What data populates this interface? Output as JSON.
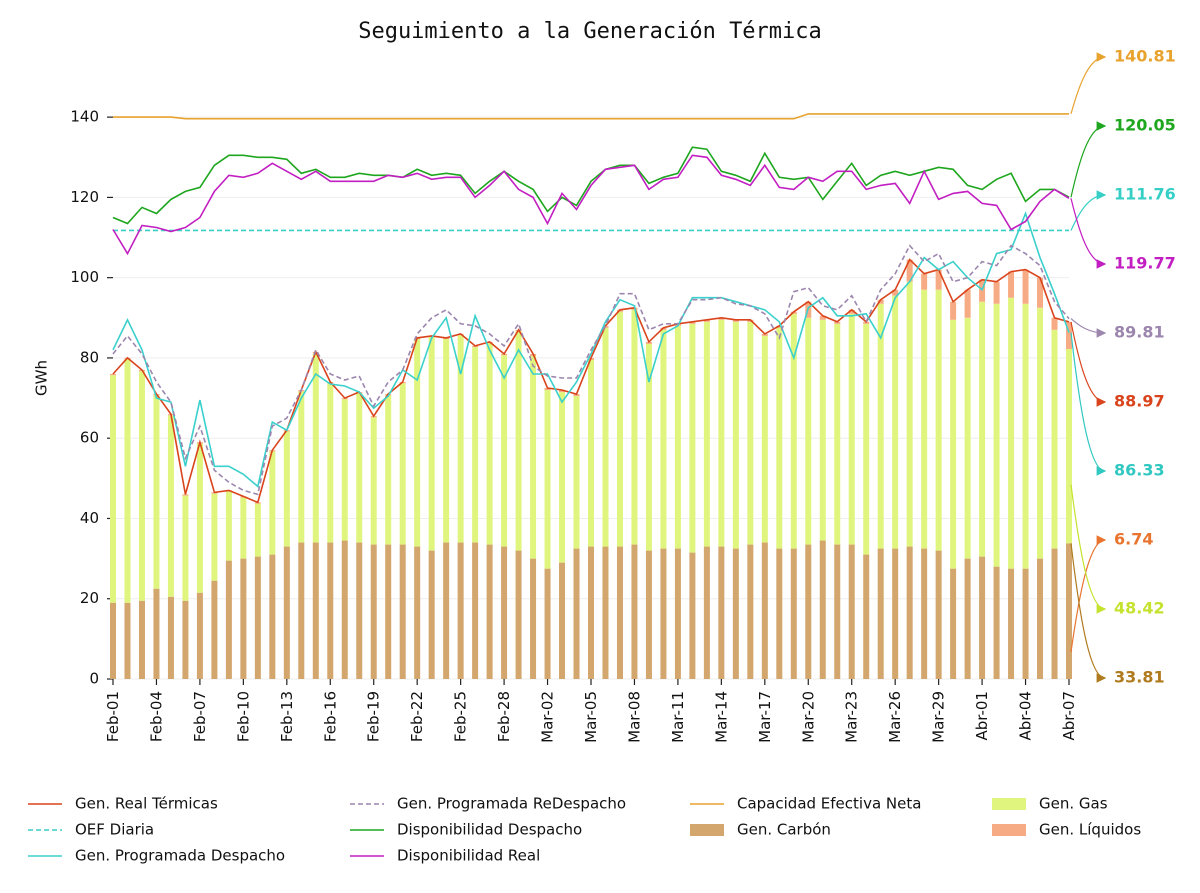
{
  "chart_data": {
    "type": "combo",
    "title": "Seguimiento a la Generación Térmica",
    "y_label": "GWh",
    "categories": [
      "Feb-01",
      null,
      null,
      "Feb-04",
      null,
      null,
      "Feb-07",
      null,
      null,
      "Feb-10",
      null,
      null,
      "Feb-13",
      null,
      null,
      "Feb-16",
      null,
      null,
      "Feb-19",
      null,
      null,
      "Feb-22",
      null,
      null,
      "Feb-25",
      null,
      null,
      "Feb-28",
      null,
      null,
      "Mar-02",
      null,
      null,
      "Mar-05",
      null,
      null,
      "Mar-08",
      null,
      null,
      "Mar-11",
      null,
      null,
      "Mar-14",
      null,
      null,
      "Mar-17",
      null,
      null,
      "Mar-20",
      null,
      null,
      "Mar-23",
      null,
      null,
      "Mar-26",
      null,
      null,
      "Mar-29",
      null,
      null,
      "Abr-01",
      null,
      null,
      "Abr-04",
      null,
      null,
      "Abr-07"
    ],
    "ylim": [
      0,
      150
    ],
    "yticks": [
      0,
      20,
      40,
      60,
      80,
      100,
      120,
      140
    ],
    "grid": true,
    "series": [
      {
        "name": "Gen. Real Térmicas",
        "kind": "line",
        "color": "#d9441c",
        "label_color": "#d9441c",
        "values": [
          76,
          80,
          77,
          71,
          66,
          46,
          59,
          46.5,
          47,
          45.5,
          44,
          57,
          62,
          72,
          81.5,
          74,
          70,
          71.5,
          65.5,
          71,
          74,
          85,
          85.5,
          85,
          86,
          83,
          84,
          81,
          87,
          81,
          72.5,
          72,
          71,
          80,
          88,
          92,
          92.5,
          84,
          87.5,
          88.5,
          89,
          89.5,
          90,
          89.5,
          89.5,
          86,
          88,
          91.5,
          94,
          90.5,
          89,
          92,
          89,
          94.5,
          97,
          104.5,
          101,
          102,
          94,
          97,
          99.5,
          99,
          101.5,
          102,
          100,
          90,
          88.97
        ]
      },
      {
        "name": "OEF Diaria",
        "kind": "hline",
        "dashed": true,
        "color": "#35cfc6",
        "label_color": "#35cfc6",
        "value": 111.76
      },
      {
        "name": "Gen. Programada Despacho",
        "kind": "line",
        "color": "#3ad0cc",
        "label_color": "#30c8c0",
        "values": [
          82,
          89.5,
          82,
          70,
          69,
          53,
          69.5,
          53,
          53,
          51,
          48,
          64,
          62,
          70,
          76,
          73.5,
          73,
          71.5,
          67.5,
          70.5,
          77,
          74.5,
          85,
          90,
          76,
          90.5,
          82,
          75,
          82,
          76,
          76,
          69,
          74,
          81,
          89,
          94.5,
          93,
          74,
          86,
          88,
          95,
          95,
          95,
          94,
          93,
          92,
          89,
          80,
          92.5,
          95,
          90.5,
          90.5,
          91,
          85,
          95,
          99,
          105,
          102,
          104,
          100,
          97,
          106,
          107,
          116,
          105,
          96,
          86.33
        ]
      },
      {
        "name": "Gen. Programada ReDespacho",
        "kind": "line",
        "dashed": true,
        "color": "#9c86ae",
        "label_color": "#9c86ae",
        "values": [
          81,
          85.5,
          81,
          74,
          69,
          55,
          63,
          52,
          49,
          47,
          46,
          63,
          65,
          72,
          82,
          76,
          74.5,
          75.5,
          68,
          74,
          77,
          86,
          90,
          92,
          88.5,
          88,
          86,
          83,
          88.5,
          78,
          75.5,
          75,
          75,
          82,
          88,
          96,
          96,
          87,
          88.5,
          88.5,
          94.5,
          94.5,
          95,
          93.5,
          93,
          91,
          85,
          96.5,
          97.5,
          93,
          92,
          95.5,
          89,
          97,
          101,
          108,
          104,
          106,
          99,
          100,
          104,
          103,
          108,
          106,
          103,
          94,
          89.81
        ]
      },
      {
        "name": "Disponibilidad Despacho",
        "kind": "line",
        "color": "#1ea61e",
        "label_color": "#1ea61e",
        "values": [
          115,
          113.5,
          117.5,
          116,
          119.5,
          121.5,
          122.5,
          128,
          130.5,
          130.5,
          130,
          130,
          129.5,
          126,
          127,
          125,
          125,
          126,
          125.5,
          125.5,
          125,
          127,
          125.5,
          126,
          125.5,
          121,
          124,
          126.5,
          124,
          122,
          116.5,
          120,
          118,
          124,
          127,
          128,
          128,
          123.5,
          125,
          126,
          132.5,
          132,
          126.5,
          125.5,
          124,
          131,
          125,
          124.5,
          125,
          119.5,
          124,
          128.5,
          123,
          125.5,
          126.5,
          125.5,
          126.5,
          127.5,
          127,
          123,
          122,
          124.5,
          126,
          119,
          122,
          122,
          120.05
        ]
      },
      {
        "name": "Disponibilidad Real",
        "kind": "line",
        "color": "#c21fc2",
        "label_color": "#c21fc2",
        "values": [
          112,
          106,
          113,
          112.5,
          111.5,
          112.5,
          115,
          121.5,
          125.5,
          125,
          126,
          128.5,
          126.5,
          124.5,
          126.5,
          124,
          124,
          124,
          124,
          125.5,
          125,
          126,
          124.5,
          125,
          125,
          120,
          123,
          126.5,
          122,
          120,
          113.5,
          121,
          117,
          123,
          127,
          127.5,
          128,
          122,
          124.5,
          125,
          130.5,
          130,
          125.5,
          124.5,
          123,
          128,
          122.5,
          122,
          125,
          124,
          126.5,
          126.5,
          122,
          123,
          123.5,
          118.5,
          126.5,
          119.5,
          121,
          121.5,
          118.5,
          118,
          112,
          114,
          119,
          122,
          119.77
        ]
      },
      {
        "name": "Capacidad Efectiva Neta",
        "kind": "line",
        "color": "#e8a22e",
        "label_color": "#e8a22e",
        "values": [
          140,
          140,
          140,
          140,
          140,
          139.6,
          139.6,
          139.6,
          139.6,
          139.6,
          139.6,
          139.6,
          139.6,
          139.6,
          139.6,
          139.6,
          139.6,
          139.6,
          139.6,
          139.6,
          139.6,
          139.6,
          139.6,
          139.6,
          139.6,
          139.6,
          139.6,
          139.6,
          139.6,
          139.6,
          139.6,
          139.6,
          139.6,
          139.6,
          139.6,
          139.6,
          139.6,
          139.6,
          139.6,
          139.6,
          139.6,
          139.6,
          139.6,
          139.6,
          139.6,
          139.6,
          139.6,
          139.6,
          140.81,
          140.81,
          140.81,
          140.81,
          140.81,
          140.81,
          140.81,
          140.81,
          140.81,
          140.81,
          140.81,
          140.81,
          140.81,
          140.81,
          140.81,
          140.81,
          140.81,
          140.81,
          140.81
        ]
      },
      {
        "name": "Gen. Carbón",
        "kind": "bar",
        "color": "#d2a66c",
        "label_color": "#b07a1e",
        "values": [
          19,
          19,
          19.5,
          22.5,
          20.5,
          19.5,
          21.5,
          24.5,
          29.5,
          30,
          30.5,
          31,
          33,
          34,
          34,
          34,
          34.5,
          34,
          33.5,
          33.5,
          33.5,
          33,
          32,
          34,
          34,
          34,
          33.5,
          33,
          32,
          30,
          27.5,
          29,
          32.5,
          33,
          33,
          33,
          33.5,
          32,
          32.5,
          32.5,
          31.5,
          33,
          33,
          32.5,
          33.5,
          34,
          32.5,
          32.5,
          33.5,
          34.5,
          33.5,
          33.5,
          31,
          32.5,
          32.5,
          33,
          32.5,
          32,
          27.5,
          30,
          30.5,
          28,
          27.5,
          27.5,
          30,
          32.5,
          33.81
        ]
      },
      {
        "name": "Gen. Gas",
        "kind": "bar",
        "color": "#e0f57e",
        "label_color": "#c4e22e",
        "values": [
          56.7,
          60.7,
          57.2,
          48.2,
          45.2,
          26.2,
          37.2,
          21.7,
          17.2,
          15.2,
          13.2,
          25.7,
          28.7,
          37.7,
          47.2,
          39.7,
          35.2,
          37.2,
          31.7,
          37.2,
          40.2,
          51.7,
          53.2,
          50.7,
          51.7,
          48.7,
          50.2,
          47.7,
          54.7,
          50.5,
          44.5,
          42.5,
          38,
          46.5,
          54.5,
          58.5,
          58.5,
          51.5,
          54.5,
          55.5,
          57,
          56,
          56.5,
          56.5,
          55.5,
          51.5,
          55,
          58.5,
          56.5,
          55,
          55,
          57.5,
          57.5,
          61,
          63,
          66,
          64.5,
          65,
          62,
          60,
          63.5,
          65.5,
          67.5,
          66,
          62.5,
          54.5,
          48.42
        ]
      },
      {
        "name": "Gen. Líquidos",
        "kind": "bar",
        "color": "#f7ab84",
        "label_color": "#e8742e",
        "values": [
          0.3,
          0.3,
          0.3,
          0.3,
          0.3,
          0.3,
          0.3,
          0.3,
          0.3,
          0.3,
          0.3,
          0.3,
          0.3,
          0.3,
          0.3,
          0.3,
          0.3,
          0.3,
          0.3,
          0.3,
          0.3,
          0.3,
          0.3,
          0.3,
          0.3,
          0.3,
          0.3,
          0.3,
          0.3,
          0.5,
          0.5,
          0.5,
          0.5,
          0.5,
          0.5,
          0.5,
          0.5,
          0.5,
          0.5,
          0.5,
          0.5,
          0.5,
          0.5,
          0.5,
          0.5,
          0.5,
          0.5,
          0.5,
          4,
          1,
          0.5,
          1,
          0.5,
          1,
          1.5,
          5.5,
          4,
          5,
          4.5,
          7,
          5.5,
          5.5,
          6.5,
          8.5,
          7.5,
          3,
          6.74
        ]
      }
    ]
  }
}
